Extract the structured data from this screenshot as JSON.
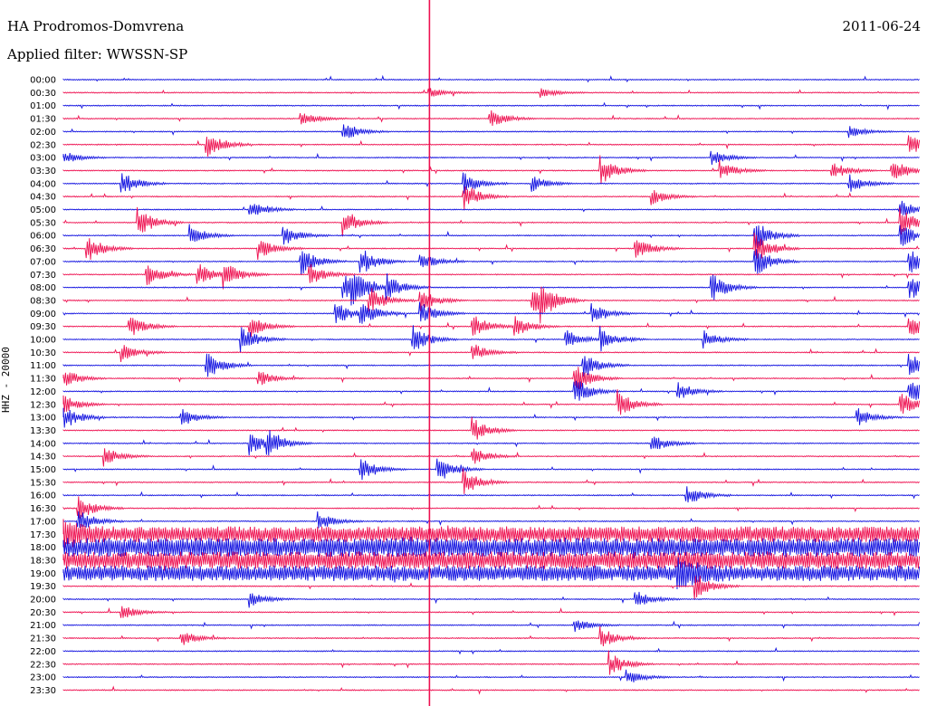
{
  "header": {
    "station": "HA Prodromos-Domvrena",
    "filter": "Applied filter: WWSSN-SP",
    "date": "2011-06-24"
  },
  "channel_label": "HHZ - 20000",
  "colors": {
    "trace_a": "#1010e0",
    "trace_b": "#ee1050",
    "marker": "#ee1050",
    "background": "#ffffff"
  },
  "chart_data": {
    "type": "line",
    "title": "HA Prodromos-Domvrena",
    "subtitle": "Applied filter: WWSSN-SP",
    "ylabel": "HHZ - 20000",
    "row_labels": [
      "00:00",
      "00:30",
      "01:00",
      "01:30",
      "02:00",
      "02:30",
      "03:00",
      "03:30",
      "04:00",
      "04:30",
      "05:00",
      "05:30",
      "06:00",
      "06:30",
      "07:00",
      "07:30",
      "08:00",
      "08:30",
      "09:00",
      "09:30",
      "10:00",
      "10:30",
      "11:00",
      "11:30",
      "12:00",
      "12:30",
      "13:00",
      "13:30",
      "14:00",
      "14:30",
      "15:00",
      "15:30",
      "16:00",
      "16:30",
      "17:00",
      "17:30",
      "18:00",
      "18:30",
      "19:00",
      "19:30",
      "20:00",
      "20:30",
      "21:00",
      "21:30",
      "22:00",
      "22:30",
      "23:00",
      "23:30"
    ],
    "row_minutes": 30,
    "series_colors": [
      "#1010e0",
      "#ee1050"
    ],
    "current_time_fraction": 0.4,
    "events": [
      {
        "row": 1,
        "t": 0.43,
        "amp": 0.3
      },
      {
        "row": 1,
        "t": 0.56,
        "amp": 0.3
      },
      {
        "row": 3,
        "t": 0.28,
        "amp": 0.5
      },
      {
        "row": 3,
        "t": 0.5,
        "amp": 0.6
      },
      {
        "row": 4,
        "t": 0.33,
        "amp": 0.6
      },
      {
        "row": 4,
        "t": 0.92,
        "amp": 0.4
      },
      {
        "row": 5,
        "t": 0.17,
        "amp": 0.9
      },
      {
        "row": 5,
        "t": 0.99,
        "amp": 0.7
      },
      {
        "row": 6,
        "t": 0.0,
        "amp": 0.5
      },
      {
        "row": 6,
        "t": 0.76,
        "amp": 0.5
      },
      {
        "row": 7,
        "t": 0.63,
        "amp": 0.9
      },
      {
        "row": 7,
        "t": 0.77,
        "amp": 0.6
      },
      {
        "row": 7,
        "t": 0.9,
        "amp": 0.6
      },
      {
        "row": 7,
        "t": 0.97,
        "amp": 0.8
      },
      {
        "row": 8,
        "t": 0.07,
        "amp": 0.8
      },
      {
        "row": 8,
        "t": 0.47,
        "amp": 0.7
      },
      {
        "row": 8,
        "t": 0.55,
        "amp": 0.5
      },
      {
        "row": 8,
        "t": 0.92,
        "amp": 0.6
      },
      {
        "row": 9,
        "t": 0.47,
        "amp": 0.9
      },
      {
        "row": 9,
        "t": 0.69,
        "amp": 0.5
      },
      {
        "row": 10,
        "t": 0.22,
        "amp": 0.7
      },
      {
        "row": 10,
        "t": 0.98,
        "amp": 0.6
      },
      {
        "row": 11,
        "t": 0.09,
        "amp": 0.9
      },
      {
        "row": 11,
        "t": 0.33,
        "amp": 0.8
      },
      {
        "row": 11,
        "t": 0.98,
        "amp": 0.9
      },
      {
        "row": 12,
        "t": 0.15,
        "amp": 0.7
      },
      {
        "row": 12,
        "t": 0.26,
        "amp": 0.7
      },
      {
        "row": 12,
        "t": 0.81,
        "amp": 1.0
      },
      {
        "row": 12,
        "t": 0.98,
        "amp": 0.8
      },
      {
        "row": 13,
        "t": 0.03,
        "amp": 0.9
      },
      {
        "row": 13,
        "t": 0.23,
        "amp": 0.7
      },
      {
        "row": 13,
        "t": 0.67,
        "amp": 0.8
      },
      {
        "row": 13,
        "t": 0.81,
        "amp": 1.0
      },
      {
        "row": 14,
        "t": 0.28,
        "amp": 0.9
      },
      {
        "row": 14,
        "t": 0.35,
        "amp": 0.9
      },
      {
        "row": 14,
        "t": 0.42,
        "amp": 0.6
      },
      {
        "row": 14,
        "t": 0.81,
        "amp": 1.0
      },
      {
        "row": 14,
        "t": 0.99,
        "amp": 0.8
      },
      {
        "row": 15,
        "t": 0.1,
        "amp": 0.8
      },
      {
        "row": 15,
        "t": 0.16,
        "amp": 0.8
      },
      {
        "row": 15,
        "t": 0.19,
        "amp": 0.8
      },
      {
        "row": 15,
        "t": 0.29,
        "amp": 0.7
      },
      {
        "row": 16,
        "t": 0.33,
        "amp": 0.9
      },
      {
        "row": 16,
        "t": 0.34,
        "amp": 0.9
      },
      {
        "row": 16,
        "t": 0.38,
        "amp": 0.9
      },
      {
        "row": 16,
        "t": 0.76,
        "amp": 0.9
      },
      {
        "row": 16,
        "t": 0.99,
        "amp": 0.9
      },
      {
        "row": 17,
        "t": 0.36,
        "amp": 0.9
      },
      {
        "row": 17,
        "t": 0.42,
        "amp": 0.7
      },
      {
        "row": 17,
        "t": 0.55,
        "amp": 0.9
      },
      {
        "row": 17,
        "t": 0.56,
        "amp": 0.9
      },
      {
        "row": 18,
        "t": 0.32,
        "amp": 0.8
      },
      {
        "row": 18,
        "t": 0.35,
        "amp": 0.7
      },
      {
        "row": 18,
        "t": 0.42,
        "amp": 0.7
      },
      {
        "row": 18,
        "t": 0.62,
        "amp": 0.6
      },
      {
        "row": 19,
        "t": 0.08,
        "amp": 0.7
      },
      {
        "row": 19,
        "t": 0.22,
        "amp": 0.7
      },
      {
        "row": 19,
        "t": 0.48,
        "amp": 0.8
      },
      {
        "row": 19,
        "t": 0.53,
        "amp": 0.7
      },
      {
        "row": 19,
        "t": 0.99,
        "amp": 0.8
      },
      {
        "row": 20,
        "t": 0.21,
        "amp": 0.9
      },
      {
        "row": 20,
        "t": 0.41,
        "amp": 0.9
      },
      {
        "row": 20,
        "t": 0.59,
        "amp": 0.6
      },
      {
        "row": 20,
        "t": 0.63,
        "amp": 0.8
      },
      {
        "row": 20,
        "t": 0.75,
        "amp": 0.6
      },
      {
        "row": 21,
        "t": 0.07,
        "amp": 0.6
      },
      {
        "row": 21,
        "t": 0.48,
        "amp": 0.6
      },
      {
        "row": 22,
        "t": 0.17,
        "amp": 0.9
      },
      {
        "row": 22,
        "t": 0.61,
        "amp": 0.8
      },
      {
        "row": 22,
        "t": 0.99,
        "amp": 0.8
      },
      {
        "row": 23,
        "t": 0.0,
        "amp": 0.7
      },
      {
        "row": 23,
        "t": 0.23,
        "amp": 0.5
      },
      {
        "row": 23,
        "t": 0.6,
        "amp": 0.9
      },
      {
        "row": 24,
        "t": 0.6,
        "amp": 0.9
      },
      {
        "row": 24,
        "t": 0.72,
        "amp": 0.6
      },
      {
        "row": 24,
        "t": 0.99,
        "amp": 0.9
      },
      {
        "row": 25,
        "t": 0.0,
        "amp": 0.7
      },
      {
        "row": 25,
        "t": 0.65,
        "amp": 0.9
      },
      {
        "row": 25,
        "t": 0.98,
        "amp": 0.8
      },
      {
        "row": 26,
        "t": 0.0,
        "amp": 0.9
      },
      {
        "row": 26,
        "t": 0.14,
        "amp": 0.6
      },
      {
        "row": 26,
        "t": 0.93,
        "amp": 0.6
      },
      {
        "row": 27,
        "t": 0.48,
        "amp": 0.8
      },
      {
        "row": 28,
        "t": 0.22,
        "amp": 0.7
      },
      {
        "row": 28,
        "t": 0.24,
        "amp": 0.9
      },
      {
        "row": 28,
        "t": 0.69,
        "amp": 0.6
      },
      {
        "row": 29,
        "t": 0.05,
        "amp": 0.6
      },
      {
        "row": 29,
        "t": 0.48,
        "amp": 0.6
      },
      {
        "row": 30,
        "t": 0.35,
        "amp": 0.7
      },
      {
        "row": 30,
        "t": 0.44,
        "amp": 0.9
      },
      {
        "row": 31,
        "t": 0.47,
        "amp": 0.9
      },
      {
        "row": 32,
        "t": 0.73,
        "amp": 0.7
      },
      {
        "row": 33,
        "t": 0.02,
        "amp": 0.8
      },
      {
        "row": 34,
        "t": 0.02,
        "amp": 0.8
      },
      {
        "row": 34,
        "t": 0.3,
        "amp": 0.6
      },
      {
        "row": 35,
        "t": 0.0,
        "amp": 0.8
      },
      {
        "row": 38,
        "t": 0.72,
        "amp": 0.9
      },
      {
        "row": 39,
        "t": 0.74,
        "amp": 0.9
      },
      {
        "row": 40,
        "t": 0.22,
        "amp": 0.5
      },
      {
        "row": 40,
        "t": 0.67,
        "amp": 0.6
      },
      {
        "row": 41,
        "t": 0.07,
        "amp": 0.5
      },
      {
        "row": 42,
        "t": 0.6,
        "amp": 0.4
      },
      {
        "row": 43,
        "t": 0.14,
        "amp": 0.5
      },
      {
        "row": 43,
        "t": 0.63,
        "amp": 0.7
      },
      {
        "row": 45,
        "t": 0.64,
        "amp": 0.8
      },
      {
        "row": 46,
        "t": 0.66,
        "amp": 0.5
      }
    ],
    "noisy_rows": [
      {
        "row": 35,
        "amp": 0.45
      },
      {
        "row": 36,
        "amp": 0.55
      },
      {
        "row": 37,
        "amp": 0.5
      },
      {
        "row": 38,
        "amp": 0.45
      }
    ]
  }
}
